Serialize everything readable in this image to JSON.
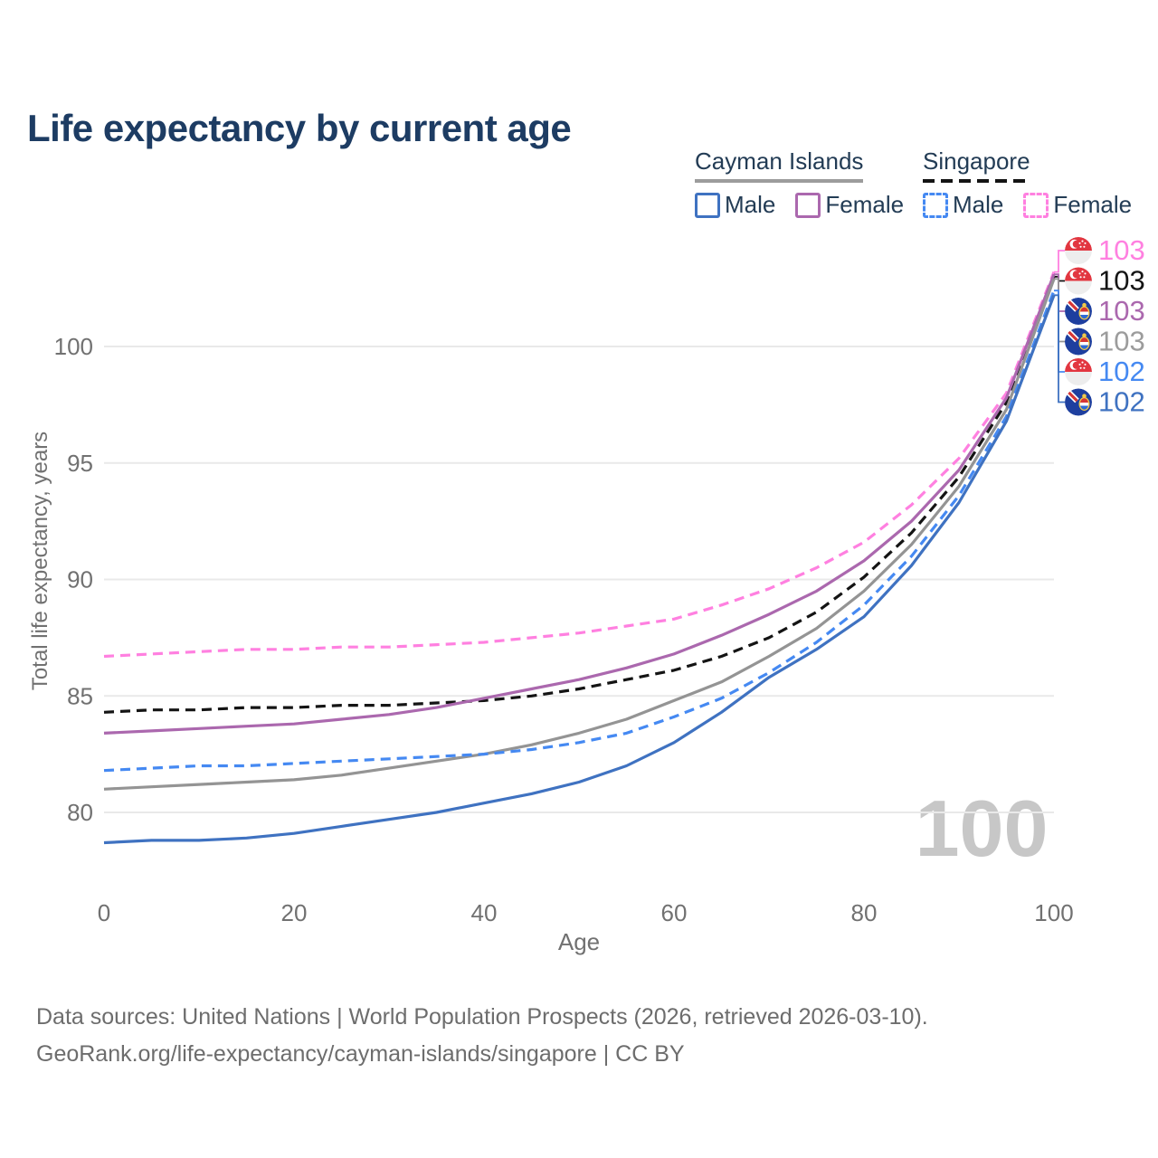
{
  "title": "Life expectancy by current age",
  "legend": {
    "groups": [
      {
        "label": "Cayman Islands",
        "line_style": "solid",
        "underline_color": "#9c9c9c",
        "items": [
          {
            "label": "Male",
            "color": "#3f72c1",
            "line_style": "solid"
          },
          {
            "label": "Female",
            "color": "#ab68ae",
            "line_style": "solid"
          }
        ]
      },
      {
        "label": "Singapore",
        "line_style": "dashed",
        "underline_color": "#141414",
        "items": [
          {
            "label": "Male",
            "color": "#4589f2",
            "line_style": "dashed"
          },
          {
            "label": "Female",
            "color": "#ff80e0",
            "line_style": "dashed"
          }
        ]
      }
    ]
  },
  "chart_data": {
    "type": "line",
    "title": "Life expectancy by current age",
    "xlabel": "Age",
    "ylabel": "Total life expectancy, years",
    "xticks": [
      0,
      20,
      40,
      60,
      80,
      100
    ],
    "yticks": [
      80,
      85,
      90,
      95,
      100
    ],
    "xlim": [
      0,
      100
    ],
    "ylim": [
      78,
      104
    ],
    "grid": "horizontal-only",
    "legend_position": "top-right",
    "x": [
      0,
      5,
      10,
      15,
      20,
      25,
      30,
      35,
      40,
      45,
      50,
      55,
      60,
      65,
      70,
      75,
      80,
      85,
      90,
      95,
      100
    ],
    "series": [
      {
        "name": "Singapore Female",
        "country": "Singapore",
        "sex": "Female",
        "color": "#ff80e0",
        "line_style": "dashed",
        "flag": "singapore",
        "end_label": "103",
        "values": [
          86.7,
          86.8,
          86.9,
          87.0,
          87.0,
          87.1,
          87.1,
          87.2,
          87.3,
          87.5,
          87.7,
          88.0,
          88.3,
          88.9,
          89.6,
          90.5,
          91.6,
          93.2,
          95.2,
          98.0,
          103.2
        ]
      },
      {
        "name": "Singapore",
        "country": "Singapore",
        "sex": "All",
        "color": "#141414",
        "line_style": "dashed",
        "flag": "singapore",
        "end_label": "103",
        "values": [
          84.3,
          84.4,
          84.4,
          84.5,
          84.5,
          84.6,
          84.6,
          84.7,
          84.8,
          85.0,
          85.3,
          85.7,
          86.1,
          86.7,
          87.5,
          88.6,
          90.1,
          92.0,
          94.4,
          97.6,
          103.0
        ]
      },
      {
        "name": "Cayman Islands Female",
        "country": "Cayman Islands",
        "sex": "Female",
        "color": "#ab68ae",
        "line_style": "solid",
        "flag": "cayman-islands",
        "end_label": "103",
        "values": [
          83.4,
          83.5,
          83.6,
          83.7,
          83.8,
          84.0,
          84.2,
          84.5,
          84.9,
          85.3,
          85.7,
          86.2,
          86.8,
          87.6,
          88.5,
          89.5,
          90.8,
          92.5,
          94.7,
          97.8,
          103.1
        ]
      },
      {
        "name": "Cayman Islands",
        "country": "Cayman Islands",
        "sex": "All",
        "color": "#949494",
        "line_style": "solid",
        "flag": "cayman-islands",
        "end_label": "103",
        "values": [
          81.0,
          81.1,
          81.2,
          81.3,
          81.4,
          81.6,
          81.9,
          82.2,
          82.5,
          82.9,
          83.4,
          84.0,
          84.8,
          85.6,
          86.7,
          87.9,
          89.5,
          91.5,
          94.0,
          97.3,
          102.9
        ]
      },
      {
        "name": "Singapore Male",
        "country": "Singapore",
        "sex": "Male",
        "color": "#4589f2",
        "line_style": "dashed",
        "flag": "singapore",
        "end_label": "102",
        "values": [
          81.8,
          81.9,
          82.0,
          82.0,
          82.1,
          82.2,
          82.3,
          82.4,
          82.5,
          82.7,
          83.0,
          83.4,
          84.1,
          84.9,
          86.0,
          87.3,
          88.9,
          91.0,
          93.6,
          97.0,
          102.4
        ]
      },
      {
        "name": "Cayman Islands Male",
        "country": "Cayman Islands",
        "sex": "Male",
        "color": "#3f72c1",
        "line_style": "solid",
        "flag": "cayman-islands",
        "end_label": "102",
        "values": [
          78.7,
          78.8,
          78.8,
          78.9,
          79.1,
          79.4,
          79.7,
          80.0,
          80.4,
          80.8,
          81.3,
          82.0,
          83.0,
          84.3,
          85.8,
          87.0,
          88.4,
          90.6,
          93.3,
          96.8,
          102.2
        ]
      }
    ]
  },
  "watermark": "100",
  "footer": {
    "line1": "Data sources: United Nations | World Population Prospects (2026, retrieved 2026-03-10).",
    "line2": "GeoRank.org/life-expectancy/cayman-islands/singapore | CC BY"
  }
}
